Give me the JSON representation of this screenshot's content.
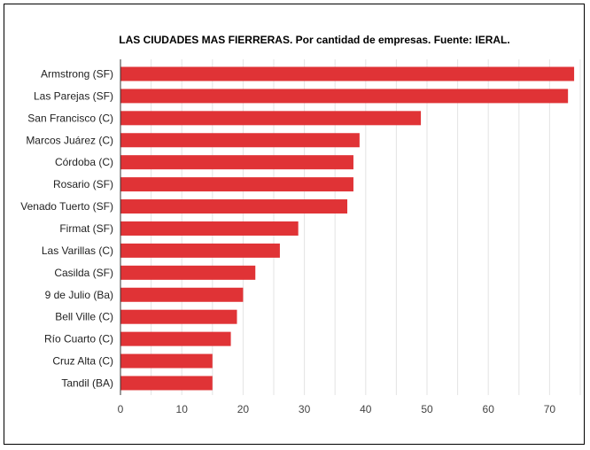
{
  "chart_data": {
    "type": "bar",
    "orientation": "horizontal",
    "title": "LAS CIUDADES MAS FIERRERAS. Por cantidad de empresas. Fuente: IERAL.",
    "categories": [
      "Armstrong (SF)",
      "Las Parejas (SF)",
      "San Francisco (C)",
      "Marcos Juárez (C)",
      "Córdoba (C)",
      "Rosario (SF)",
      "Venado Tuerto (SF)",
      "Firmat (SF)",
      "Las Varillas (C)",
      "Casilda (SF)",
      "9 de Julio (Ba)",
      "Bell Ville (C)",
      "Río Cuarto (C)",
      "Cruz Alta (C)",
      "Tandil (BA)"
    ],
    "values": [
      74,
      73,
      49,
      39,
      38,
      38,
      37,
      29,
      26,
      22,
      20,
      19,
      18,
      15,
      15
    ],
    "xlim": [
      0,
      75
    ],
    "x_ticks": [
      "0",
      "10",
      "20",
      "30",
      "40",
      "50",
      "60",
      "70"
    ],
    "grid": true,
    "colors": {
      "bar": "#e03336",
      "grid": "#e3e3e3",
      "axis": "#333333"
    }
  }
}
